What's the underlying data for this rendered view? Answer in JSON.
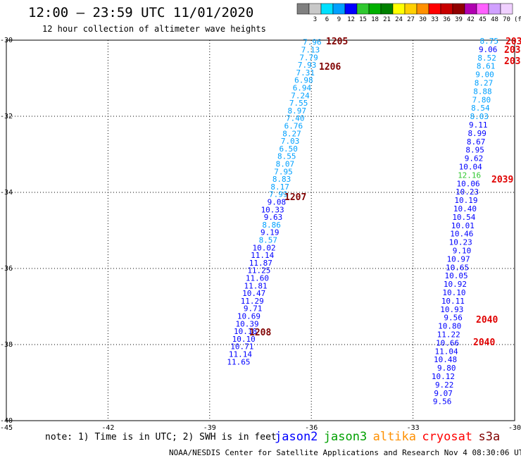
{
  "title": "12:00 – 23:59 UTC 11/01/2020",
  "subtitle": "12 hour collection of altimeter wave heights",
  "legend": {
    "unit_label": "(ft)",
    "bins": [
      {
        "label": "",
        "color": "#808080"
      },
      {
        "label": "3",
        "color": "#c8c8c8"
      },
      {
        "label": "6",
        "color": "#00e0ff"
      },
      {
        "label": "9",
        "color": "#00a0ff"
      },
      {
        "label": "12",
        "color": "#0000ff"
      },
      {
        "label": "15",
        "color": "#30c830"
      },
      {
        "label": "18",
        "color": "#00b000"
      },
      {
        "label": "21",
        "color": "#008000"
      },
      {
        "label": "24",
        "color": "#ffff00"
      },
      {
        "label": "27",
        "color": "#ffd000"
      },
      {
        "label": "30",
        "color": "#ff9000"
      },
      {
        "label": "33",
        "color": "#ff0000"
      },
      {
        "label": "36",
        "color": "#c80000"
      },
      {
        "label": "39",
        "color": "#900000"
      },
      {
        "label": "42",
        "color": "#b000b0"
      },
      {
        "label": "45",
        "color": "#ff60ff"
      },
      {
        "label": "48",
        "color": "#d0a0ff"
      },
      {
        "label": "70",
        "color": "#f0d0ff"
      }
    ]
  },
  "map": {
    "lon_range": [
      -45,
      -30
    ],
    "lat_range": [
      -40,
      -30
    ],
    "lon_ticks": [
      -45,
      -42,
      -39,
      -36,
      -33,
      -30
    ],
    "lon_tick_labels": [
      "-45",
      "-42",
      "-39",
      "-36",
      "-33",
      "-30"
    ],
    "lat_ticks": [
      -30,
      -32,
      -34,
      -36,
      -38,
      -40
    ],
    "lat_tick_labels": [
      "-30",
      "-32",
      "-34",
      "-36",
      "-38",
      "-40"
    ]
  },
  "tracks": [
    {
      "name": "track-left",
      "points": [
        {
          "lon": -35.7,
          "lat": -30.05,
          "v": "7.96",
          "c": "#00a0ff"
        },
        {
          "lon": -35.75,
          "lat": -30.25,
          "v": "7.13",
          "c": "#00a0ff"
        },
        {
          "lon": -35.8,
          "lat": -30.45,
          "v": "7.79",
          "c": "#00a0ff"
        },
        {
          "lon": -35.85,
          "lat": -30.65,
          "v": "7.93",
          "c": "#00a0ff"
        },
        {
          "lon": -35.9,
          "lat": -30.85,
          "v": "7.31",
          "c": "#00a0ff"
        },
        {
          "lon": -35.95,
          "lat": -31.05,
          "v": "6.98",
          "c": "#00a0ff"
        },
        {
          "lon": -36.0,
          "lat": -31.25,
          "v": "6.94",
          "c": "#00a0ff"
        },
        {
          "lon": -36.05,
          "lat": -31.45,
          "v": "7.24",
          "c": "#00a0ff"
        },
        {
          "lon": -36.1,
          "lat": -31.65,
          "v": "7.55",
          "c": "#00a0ff"
        },
        {
          "lon": -36.15,
          "lat": -31.85,
          "v": "8.97",
          "c": "#00a0ff"
        },
        {
          "lon": -36.2,
          "lat": -32.05,
          "v": "7.40",
          "c": "#00a0ff"
        },
        {
          "lon": -36.25,
          "lat": -32.25,
          "v": "6.76",
          "c": "#00a0ff"
        },
        {
          "lon": -36.3,
          "lat": -32.45,
          "v": "8.27",
          "c": "#00a0ff"
        },
        {
          "lon": -36.35,
          "lat": -32.65,
          "v": "7.03",
          "c": "#00a0ff"
        },
        {
          "lon": -36.4,
          "lat": -32.85,
          "v": "6.50",
          "c": "#00a0ff"
        },
        {
          "lon": -36.45,
          "lat": -33.05,
          "v": "8.55",
          "c": "#00a0ff"
        },
        {
          "lon": -36.5,
          "lat": -33.25,
          "v": "8.07",
          "c": "#00a0ff"
        },
        {
          "lon": -36.55,
          "lat": -33.45,
          "v": "7.95",
          "c": "#00a0ff"
        },
        {
          "lon": -36.6,
          "lat": -33.65,
          "v": "8.83",
          "c": "#00a0ff"
        },
        {
          "lon": -36.65,
          "lat": -33.85,
          "v": "8.17",
          "c": "#00a0ff"
        },
        {
          "lon": -36.7,
          "lat": -34.05,
          "v": "7.99",
          "c": "#00a0ff"
        },
        {
          "lon": -36.75,
          "lat": -34.25,
          "v": "9.08",
          "c": "#0000ff"
        },
        {
          "lon": -36.8,
          "lat": -34.45,
          "v": "10.33",
          "c": "#0000ff"
        },
        {
          "lon": -36.85,
          "lat": -34.65,
          "v": "9.63",
          "c": "#0000ff"
        },
        {
          "lon": -36.9,
          "lat": -34.85,
          "v": "8.86",
          "c": "#00a0ff"
        },
        {
          "lon": -36.95,
          "lat": -35.05,
          "v": "9.19",
          "c": "#0000ff"
        },
        {
          "lon": -37.0,
          "lat": -35.25,
          "v": "8.57",
          "c": "#00a0ff"
        },
        {
          "lon": -37.05,
          "lat": -35.45,
          "v": "10.02",
          "c": "#0000ff"
        },
        {
          "lon": -37.1,
          "lat": -35.65,
          "v": "11.14",
          "c": "#0000ff"
        },
        {
          "lon": -37.15,
          "lat": -35.85,
          "v": "11.87",
          "c": "#0000ff"
        },
        {
          "lon": -37.2,
          "lat": -36.05,
          "v": "11.25",
          "c": "#0000ff"
        },
        {
          "lon": -37.25,
          "lat": -36.25,
          "v": "11.60",
          "c": "#0000ff"
        },
        {
          "lon": -37.3,
          "lat": -36.45,
          "v": "11.81",
          "c": "#0000ff"
        },
        {
          "lon": -37.35,
          "lat": -36.65,
          "v": "10.47",
          "c": "#0000ff"
        },
        {
          "lon": -37.4,
          "lat": -36.85,
          "v": "11.29",
          "c": "#0000ff"
        },
        {
          "lon": -37.45,
          "lat": -37.05,
          "v": "9.71",
          "c": "#0000ff"
        },
        {
          "lon": -37.5,
          "lat": -37.25,
          "v": "10.69",
          "c": "#0000ff"
        },
        {
          "lon": -37.55,
          "lat": -37.45,
          "v": "10.39",
          "c": "#0000ff"
        },
        {
          "lon": -37.6,
          "lat": -37.65,
          "v": "10.18",
          "c": "#0000ff"
        },
        {
          "lon": -37.65,
          "lat": -37.85,
          "v": "10.10",
          "c": "#0000ff"
        },
        {
          "lon": -37.7,
          "lat": -38.05,
          "v": "10.71",
          "c": "#0000ff"
        },
        {
          "lon": -37.75,
          "lat": -38.25,
          "v": "11.14",
          "c": "#0000ff"
        },
        {
          "lon": -37.8,
          "lat": -38.45,
          "v": "11.65",
          "c": "#0000ff"
        }
      ]
    }
  ],
  "time_labels": [
    {
      "text": "1205",
      "color": "#800000"
    },
    {
      "text": "1206",
      "color": "#800000"
    },
    {
      "text": "1207",
      "color": "#800000"
    },
    {
      "text": "1208",
      "color": "#800000"
    },
    {
      "text": "2039",
      "color": "#e00000"
    },
    {
      "text": "2040",
      "color": "#e00000"
    },
    {
      "text": "2040",
      "color": "#e00000"
    }
  ],
  "note": "note: 1) Time is in UTC; 2) SWH is in feet",
  "satellites": [
    {
      "name": "jason2",
      "color": "#0000ff"
    },
    {
      "name": "jason3",
      "color": "#00a000"
    },
    {
      "name": "altika",
      "color": "#ff9000"
    },
    {
      "name": "cryosat",
      "color": "#ff0000"
    },
    {
      "name": "s3a",
      "color": "#800000"
    }
  ],
  "credit": "NOAA/NESDIS Center for Satellite Applications and Research   Nov  4 08:30:06 UTC 2020"
}
